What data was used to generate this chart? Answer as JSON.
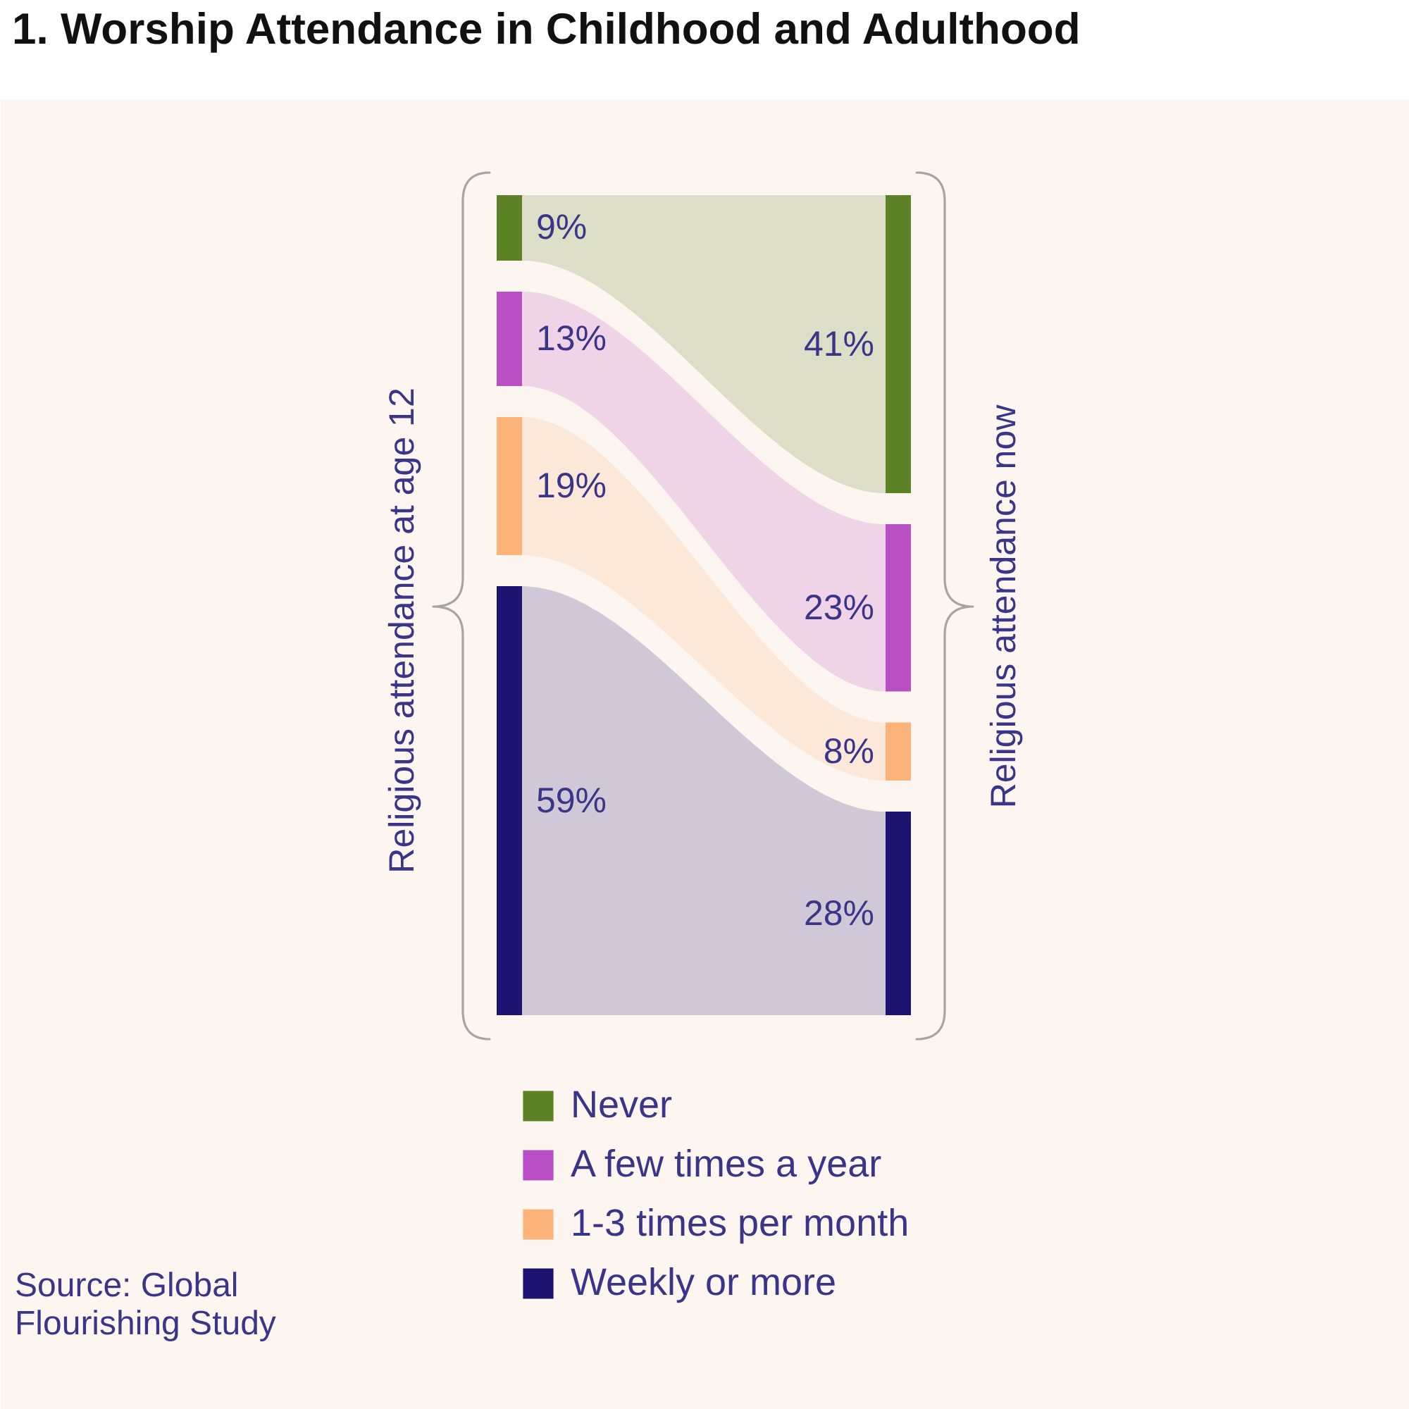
{
  "chart_data": {
    "type": "other",
    "title": "1.  Worship Attendance in Childhood and Adulthood",
    "categories": [
      "Religious attendance at age 12",
      "Religious attendance now"
    ],
    "series": [
      {
        "name": "Never",
        "color": "#5b8224",
        "values": [
          9,
          41
        ],
        "value_labels": [
          "9%",
          "41%"
        ]
      },
      {
        "name": "A few times a year",
        "color": "#b84fc4",
        "values": [
          13,
          23
        ],
        "value_labels": [
          "13%",
          "23%"
        ]
      },
      {
        "name": "1-3 times per month",
        "color": "#fcb37a",
        "values": [
          19,
          8
        ],
        "value_labels": [
          "19%",
          "8%"
        ]
      },
      {
        "name": "Weekly or more",
        "color": "#1c1470",
        "values": [
          59,
          28
        ],
        "value_labels": [
          "59%",
          "28%"
        ]
      }
    ],
    "legend": "bottom",
    "annotations": [
      "Source: Global Flourishing Study"
    ]
  }
}
